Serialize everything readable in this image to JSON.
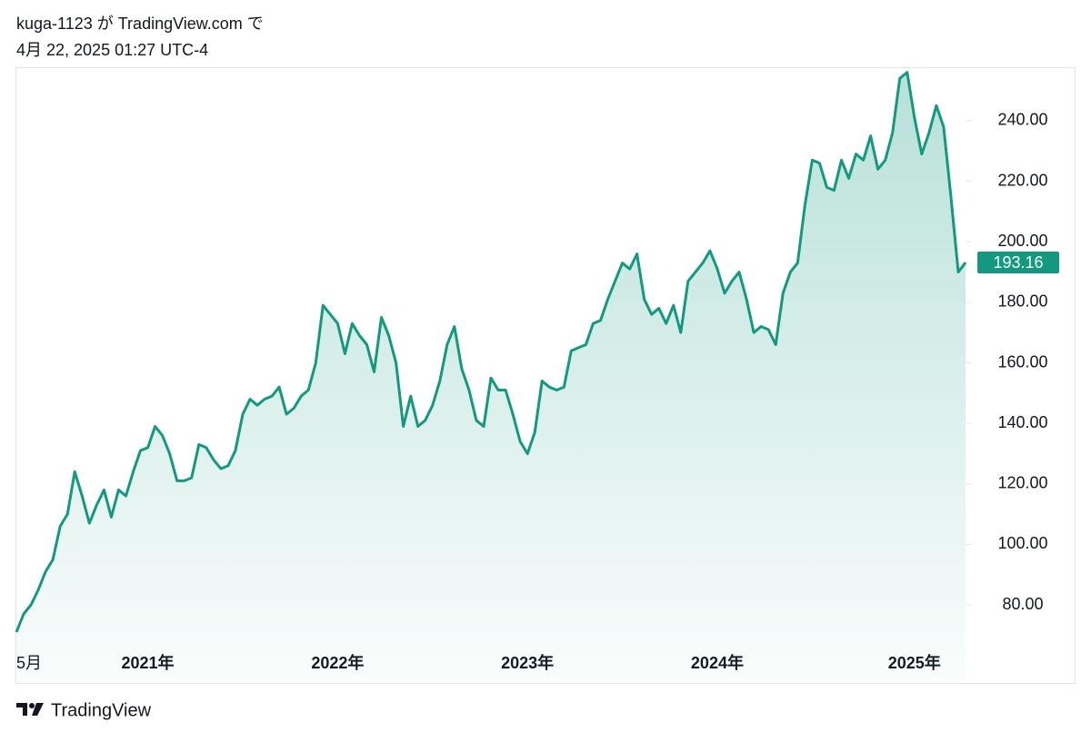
{
  "chart_data": {
    "type": "area",
    "title": "kuga-1123 が TradingView.com で",
    "subtitle": "4月 22, 2025 01:27 UTC-4",
    "brand": "TradingView",
    "color": "#12997f",
    "categories": [
      "5月",
      null,
      null,
      null,
      null,
      null,
      null,
      null,
      null,
      null,
      null,
      null,
      null,
      null,
      null,
      null,
      null,
      null,
      "2021年",
      null,
      null,
      null,
      null,
      null,
      null,
      null,
      null,
      null,
      null,
      null,
      null,
      null,
      null,
      null,
      null,
      null,
      null,
      null,
      null,
      null,
      null,
      null,
      null,
      null,
      "2022年",
      null,
      null,
      null,
      null,
      null,
      null,
      null,
      null,
      null,
      null,
      null,
      null,
      null,
      null,
      null,
      null,
      null,
      null,
      null,
      null,
      null,
      null,
      null,
      null,
      null,
      "2023年",
      null,
      null,
      null,
      null,
      null,
      null,
      null,
      null,
      null,
      null,
      null,
      null,
      null,
      null,
      null,
      null,
      null,
      null,
      null,
      null,
      null,
      null,
      null,
      null,
      null,
      "2024年",
      null,
      null,
      null,
      null,
      null,
      null,
      null,
      null,
      null,
      null,
      null,
      null,
      null,
      null,
      null,
      null,
      null,
      null,
      null,
      null,
      null,
      null,
      null,
      null,
      null,
      null,
      "2025年",
      null,
      null,
      null,
      null,
      null,
      null,
      null
    ],
    "values": [
      71,
      77,
      80,
      85,
      91,
      95,
      106,
      110,
      124,
      116,
      107,
      113,
      118,
      109,
      118,
      116,
      124,
      131,
      132,
      139,
      136,
      130,
      121,
      121,
      122,
      133,
      132,
      128,
      125,
      126,
      131,
      143,
      148,
      146,
      148,
      149,
      152,
      143,
      145,
      149,
      151,
      160,
      179,
      176,
      173,
      163,
      173,
      169,
      166,
      157,
      175,
      169,
      160,
      139,
      149,
      139,
      141,
      146,
      154,
      166,
      172,
      158,
      151,
      141,
      139,
      155,
      151,
      151,
      143,
      134,
      130,
      137,
      154,
      152,
      151,
      152,
      164,
      165,
      166,
      173,
      174,
      181,
      187,
      193,
      191,
      196,
      181,
      176,
      178,
      173,
      179,
      170,
      187,
      190,
      193,
      197,
      191,
      183,
      187,
      190,
      181,
      170,
      172,
      171,
      166,
      183,
      190,
      193,
      212,
      227,
      226,
      218,
      217,
      227,
      221,
      229,
      227,
      235,
      224,
      227,
      236,
      254,
      256,
      241,
      229,
      236,
      245,
      238,
      215,
      190,
      193.16
    ],
    "ylim": [
      54.2,
      257.4
    ],
    "yticks": [
      {
        "value": 80,
        "label": "80.00"
      },
      {
        "value": 100,
        "label": "100.00"
      },
      {
        "value": 120,
        "label": "120.00"
      },
      {
        "value": 140,
        "label": "140.00"
      },
      {
        "value": 160,
        "label": "160.00"
      },
      {
        "value": 180,
        "label": "180.00"
      },
      {
        "value": 200,
        "label": "200.00"
      },
      {
        "value": 220,
        "label": "220.00"
      },
      {
        "value": 240,
        "label": "240.00"
      }
    ]
  }
}
